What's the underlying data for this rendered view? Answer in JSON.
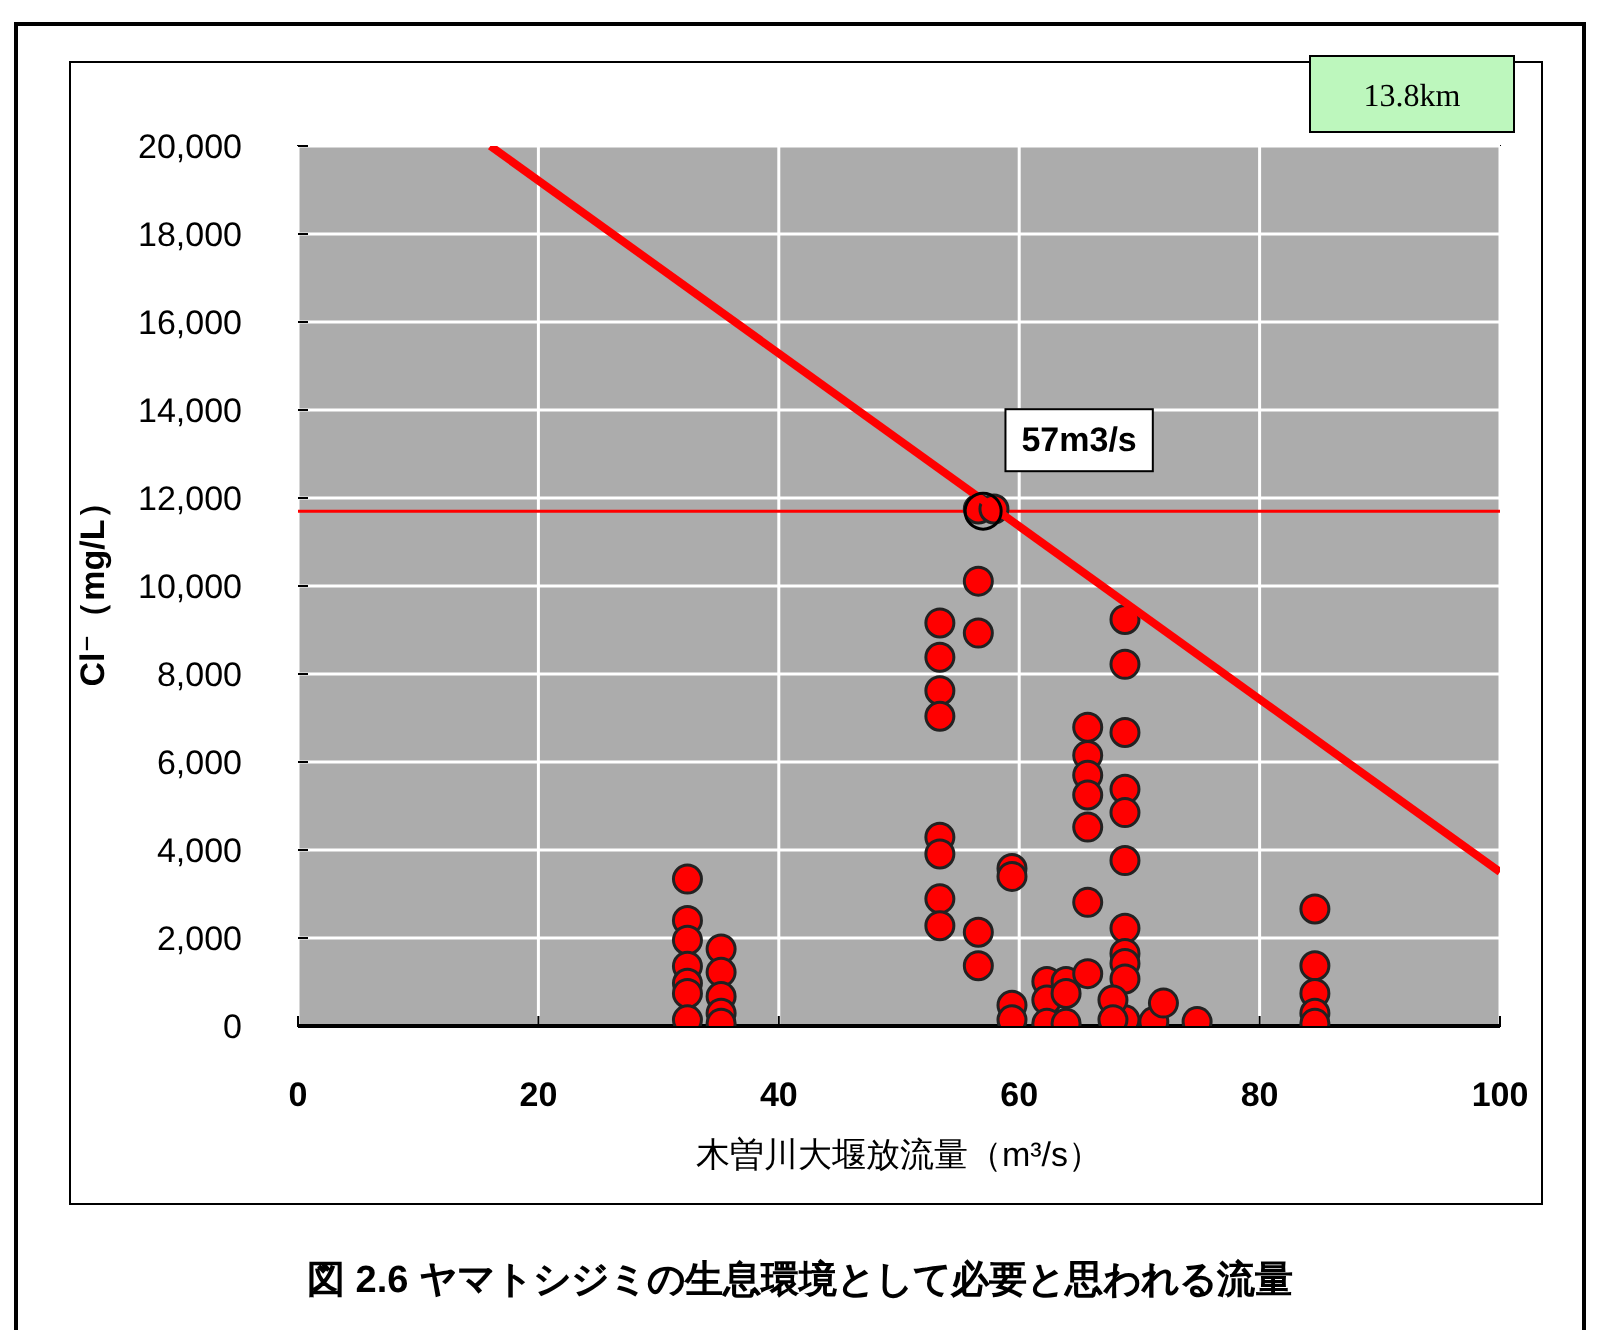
{
  "chart_data": {
    "type": "scatter",
    "title": "図 2.6  ヤマトシジミの生息環境として必要と思われる流量",
    "xlabel": "木曽川大堰放流量（m³/s）",
    "ylabel": "Cl⁻（mg/L）",
    "xlim": [
      0,
      100
    ],
    "xticks": [
      0,
      20,
      40,
      60,
      80,
      100
    ],
    "ylim": [
      0,
      20000
    ],
    "yticks": [
      {
        "value": 0,
        "label": "0"
      },
      {
        "value": 2000,
        "label": "2,000"
      },
      {
        "value": 4000,
        "label": "4,000"
      },
      {
        "value": 6000,
        "label": "6,000"
      },
      {
        "value": 8000,
        "label": "8,000"
      },
      {
        "value": 10000,
        "label": "10,000"
      },
      {
        "value": 12000,
        "label": "12,000"
      },
      {
        "value": 14000,
        "label": "14,000"
      },
      {
        "value": 16000,
        "label": "16,000"
      },
      {
        "value": 18000,
        "label": "18,000"
      },
      {
        "value": 20000,
        "label": "20,000"
      }
    ],
    "grid": true,
    "marker": "circle",
    "series": [
      {
        "color": "#ff0000",
        "x": [
          32.4,
          32.4,
          32.4,
          32.4,
          32.4,
          32.4,
          32.4,
          35.2,
          35.2,
          35.2,
          35.2,
          35.2,
          53.4,
          53.4,
          53.4,
          53.4,
          53.4,
          53.4,
          53.4,
          53.4,
          56.6,
          56.6,
          56.6,
          56.6,
          56.6,
          57.9,
          59.4,
          59.4,
          59.4,
          59.4,
          62.3,
          62.3,
          62.3,
          63.9,
          63.9,
          63.9,
          65.7,
          65.7,
          65.7,
          65.7,
          65.7,
          65.7,
          65.7,
          68.8,
          68.8,
          68.8,
          68.8,
          68.8,
          68.8,
          68.8,
          68.8,
          68.8,
          68.8,
          68.8,
          67.8,
          67.8,
          71.2,
          72.0,
          74.8,
          84.6,
          84.6,
          84.6,
          84.6,
          84.6
        ],
        "values": [
          3340,
          2400,
          1950,
          1360,
          970,
          740,
          140,
          1750,
          1220,
          670,
          290,
          60,
          9160,
          8380,
          7620,
          7040,
          4290,
          3910,
          2890,
          2280,
          11750,
          10110,
          8930,
          2130,
          1370,
          11750,
          3580,
          3400,
          470,
          140,
          1010,
          590,
          60,
          1010,
          740,
          60,
          6790,
          6150,
          5700,
          5250,
          4520,
          2810,
          1190,
          9240,
          8220,
          6670,
          5380,
          4850,
          3760,
          2220,
          1650,
          1420,
          1070,
          140,
          590,
          140,
          100,
          520,
          100,
          2660,
          1370,
          740,
          290,
          60
        ]
      },
      {
        "type": "line",
        "color": "#ff0000",
        "marker": "none",
        "x": [
          16,
          100
        ],
        "values": [
          20000,
          3500
        ]
      }
    ],
    "ref_lines": [
      {
        "axis": "y",
        "value": 11700,
        "color": "#ff0000"
      }
    ],
    "annotations": [
      "13.8km",
      {
        "text": "57m3/s",
        "x": 57,
        "y": 11700
      }
    ]
  }
}
